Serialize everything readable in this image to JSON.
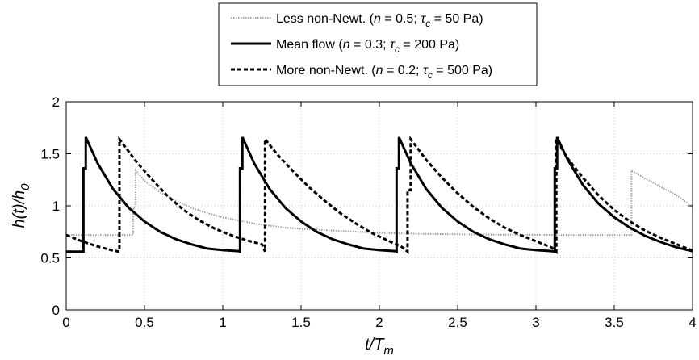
{
  "chart_data": {
    "type": "line",
    "xlabel": {
      "main": "t/T",
      "sub": "m"
    },
    "ylabel": {
      "main": "h(t)/h",
      "sub": "0"
    },
    "xlim": [
      0,
      4
    ],
    "ylim": [
      0,
      2
    ],
    "xticks": [
      0,
      0.5,
      1,
      1.5,
      2,
      2.5,
      3,
      3.5,
      4
    ],
    "xtick_labels": [
      "0",
      "0.5",
      "1",
      "1.5",
      "2",
      "2.5",
      "3",
      "3.5",
      "4"
    ],
    "yticks": [
      0,
      0.5,
      1,
      1.5,
      2
    ],
    "ytick_labels": [
      "0",
      "0.5",
      "1",
      "1.5",
      "2"
    ],
    "grid": true,
    "legend_position": "top-center",
    "legend": [
      {
        "parts": [
          "Less non-Newt. (",
          "n",
          " = 0.5;  ",
          "τ",
          "c",
          " = 50 Pa)"
        ]
      },
      {
        "parts": [
          "Mean flow (",
          "n",
          " = 0.3;  ",
          "τ",
          "c",
          " = 200 Pa)"
        ]
      },
      {
        "parts": [
          "More non-Newt. (",
          "n",
          " = 0.2;  ",
          "τ",
          "c",
          " = 500 Pa)"
        ]
      }
    ],
    "series": [
      {
        "name": "Less non-Newt. (n = 0.5; τc = 50 Pa)",
        "color": "#a0a0a0",
        "style": "dotted",
        "points": [
          [
            0.0,
            0.72
          ],
          [
            0.427,
            0.72
          ],
          [
            0.427,
            0.98
          ],
          [
            0.443,
            0.98
          ],
          [
            0.443,
            1.34
          ],
          [
            0.5,
            1.24
          ],
          [
            0.6,
            1.13
          ],
          [
            0.7,
            1.05
          ],
          [
            0.8,
            0.98
          ],
          [
            0.9,
            0.93
          ],
          [
            1.0,
            0.89
          ],
          [
            1.2,
            0.83
          ],
          [
            1.4,
            0.79
          ],
          [
            1.6,
            0.77
          ],
          [
            1.8,
            0.755
          ],
          [
            2.0,
            0.74
          ],
          [
            2.3,
            0.73
          ],
          [
            2.6,
            0.725
          ],
          [
            2.9,
            0.722
          ],
          [
            3.2,
            0.72
          ],
          [
            3.61,
            0.72
          ],
          [
            3.61,
            1.34
          ],
          [
            3.7,
            1.26
          ],
          [
            3.8,
            1.18
          ],
          [
            3.9,
            1.1
          ],
          [
            4.0,
            0.99
          ]
        ]
      },
      {
        "name": "Mean flow (n = 0.3; τc = 200 Pa)",
        "color": "#000000",
        "style": "solid",
        "points": [
          [
            0.0,
            0.56
          ],
          [
            0.11,
            0.56
          ],
          [
            0.11,
            1.36
          ],
          [
            0.125,
            1.36
          ],
          [
            0.125,
            1.66
          ],
          [
            0.2,
            1.41
          ],
          [
            0.3,
            1.16
          ],
          [
            0.4,
            0.98
          ],
          [
            0.5,
            0.85
          ],
          [
            0.6,
            0.75
          ],
          [
            0.7,
            0.68
          ],
          [
            0.8,
            0.63
          ],
          [
            0.9,
            0.59
          ],
          [
            1.0,
            0.575
          ],
          [
            1.1,
            0.565
          ],
          [
            1.11,
            0.56
          ],
          [
            1.11,
            1.36
          ],
          [
            1.125,
            1.36
          ],
          [
            1.125,
            1.66
          ],
          [
            1.2,
            1.41
          ],
          [
            1.3,
            1.16
          ],
          [
            1.4,
            0.98
          ],
          [
            1.5,
            0.85
          ],
          [
            1.6,
            0.75
          ],
          [
            1.7,
            0.68
          ],
          [
            1.8,
            0.63
          ],
          [
            1.9,
            0.59
          ],
          [
            2.0,
            0.575
          ],
          [
            2.1,
            0.565
          ],
          [
            2.11,
            0.56
          ],
          [
            2.11,
            1.36
          ],
          [
            2.125,
            1.36
          ],
          [
            2.125,
            1.66
          ],
          [
            2.2,
            1.41
          ],
          [
            2.3,
            1.16
          ],
          [
            2.4,
            0.98
          ],
          [
            2.5,
            0.85
          ],
          [
            2.6,
            0.75
          ],
          [
            2.7,
            0.68
          ],
          [
            2.8,
            0.63
          ],
          [
            2.9,
            0.59
          ],
          [
            3.0,
            0.575
          ],
          [
            3.1,
            0.565
          ],
          [
            3.12,
            0.56
          ],
          [
            3.12,
            1.36
          ],
          [
            3.135,
            1.36
          ],
          [
            3.135,
            1.66
          ],
          [
            3.2,
            1.45
          ],
          [
            3.3,
            1.2
          ],
          [
            3.4,
            1.02
          ],
          [
            3.5,
            0.89
          ],
          [
            3.6,
            0.79
          ],
          [
            3.7,
            0.71
          ],
          [
            3.8,
            0.65
          ],
          [
            3.9,
            0.6
          ],
          [
            4.0,
            0.565
          ]
        ]
      },
      {
        "name": "More non-Newt. (n = 0.2; τc = 500 Pa)",
        "color": "#000000",
        "style": "dashed",
        "points": [
          [
            0.0,
            0.72
          ],
          [
            0.1,
            0.66
          ],
          [
            0.2,
            0.61
          ],
          [
            0.3,
            0.57
          ],
          [
            0.34,
            0.56
          ],
          [
            0.34,
            1.64
          ],
          [
            0.45,
            1.42
          ],
          [
            0.55,
            1.25
          ],
          [
            0.65,
            1.09
          ],
          [
            0.75,
            0.96
          ],
          [
            0.85,
            0.86
          ],
          [
            0.95,
            0.78
          ],
          [
            1.05,
            0.72
          ],
          [
            1.15,
            0.67
          ],
          [
            1.25,
            0.63
          ],
          [
            1.27,
            0.56
          ],
          [
            1.27,
            1.64
          ],
          [
            1.35,
            1.49
          ],
          [
            1.45,
            1.33
          ],
          [
            1.55,
            1.18
          ],
          [
            1.65,
            1.05
          ],
          [
            1.75,
            0.93
          ],
          [
            1.85,
            0.83
          ],
          [
            1.95,
            0.74
          ],
          [
            2.05,
            0.67
          ],
          [
            2.15,
            0.6
          ],
          [
            2.18,
            0.56
          ],
          [
            2.18,
            1.15
          ],
          [
            2.2,
            1.15
          ],
          [
            2.2,
            1.64
          ],
          [
            2.3,
            1.44
          ],
          [
            2.4,
            1.27
          ],
          [
            2.5,
            1.12
          ],
          [
            2.6,
            0.99
          ],
          [
            2.7,
            0.88
          ],
          [
            2.8,
            0.79
          ],
          [
            2.9,
            0.72
          ],
          [
            3.0,
            0.66
          ],
          [
            3.1,
            0.6
          ],
          [
            3.13,
            0.56
          ],
          [
            3.13,
            1.64
          ],
          [
            3.2,
            1.46
          ],
          [
            3.3,
            1.27
          ],
          [
            3.4,
            1.1
          ],
          [
            3.5,
            0.96
          ],
          [
            3.6,
            0.85
          ],
          [
            3.7,
            0.76
          ],
          [
            3.8,
            0.69
          ],
          [
            3.9,
            0.63
          ],
          [
            4.0,
            0.57
          ]
        ]
      }
    ]
  }
}
